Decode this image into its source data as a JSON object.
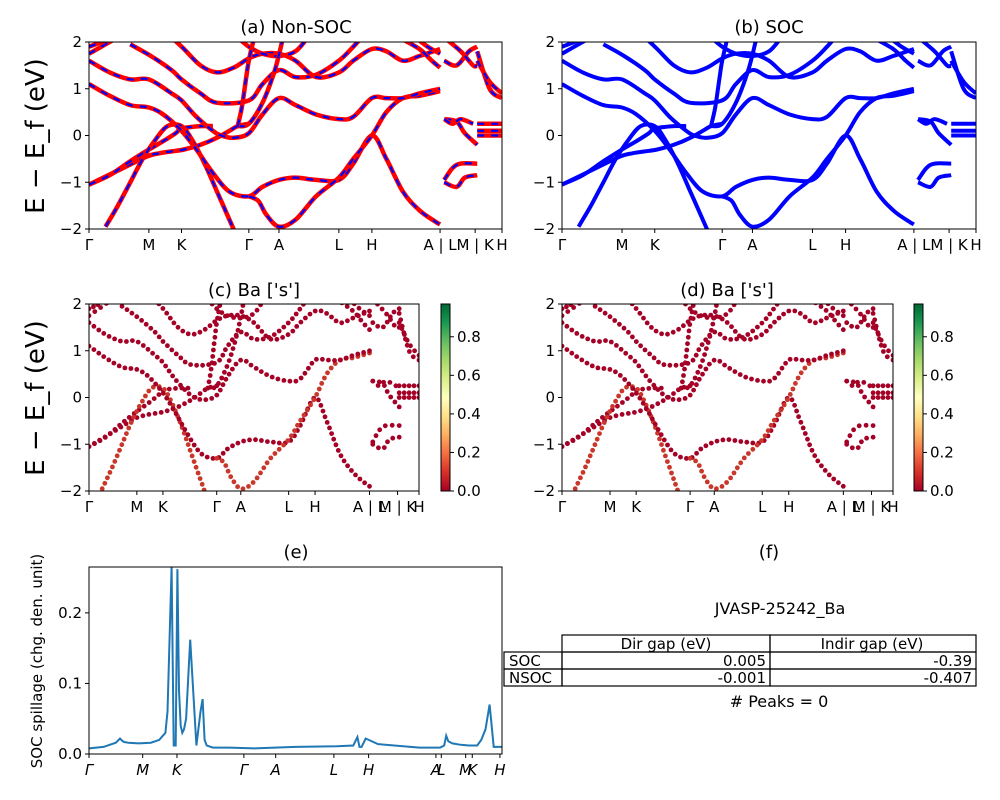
{
  "chart_data": [
    {
      "type": "line",
      "title": "(a) Non-SOC",
      "ylabel": "E − E_f (eV)",
      "ylim": [
        -2,
        2
      ],
      "y_ticks": [
        "−2",
        "−1",
        "0",
        "1",
        "2"
      ],
      "x_ticks": [
        "Γ",
        "M",
        "K",
        "Γ",
        "A",
        "L",
        "H",
        "A | L",
        "M | K",
        "H"
      ],
      "series_colors": [
        "#ff0000",
        "#0000ff"
      ],
      "style": "red bands with blue dashes"
    },
    {
      "type": "line",
      "title": "(b) SOC",
      "ylim": [
        -2,
        2
      ],
      "y_ticks": [
        "−2",
        "−1",
        "0",
        "1",
        "2"
      ],
      "x_ticks": [
        "Γ",
        "M",
        "K",
        "Γ",
        "A",
        "L",
        "H",
        "A | L",
        "M | K",
        "H"
      ],
      "series_colors": [
        "#0000ff"
      ]
    },
    {
      "type": "scatter",
      "title": "(c)  Ba ['s']",
      "ylabel": "E − E_f (eV)",
      "ylim": [
        -2,
        2
      ],
      "y_ticks": [
        "−2",
        "−1",
        "0",
        "1",
        "2"
      ],
      "x_ticks": [
        "Γ",
        "M",
        "K",
        "Γ",
        "A",
        "L",
        "H",
        "A | L",
        "M | K",
        "H"
      ],
      "colorbar": {
        "colormap": "RdYlGn",
        "min": 0.0,
        "max": 0.97,
        "ticks": [
          "0.0",
          "0.2",
          "0.4",
          "0.6",
          "0.8"
        ]
      }
    },
    {
      "type": "scatter",
      "title": "(d) Ba ['s']",
      "ylim": [
        -2,
        2
      ],
      "y_ticks": [
        "−2",
        "−1",
        "0",
        "1",
        "2"
      ],
      "x_ticks": [
        "Γ",
        "M",
        "K",
        "Γ",
        "A",
        "L",
        "H",
        "A | L",
        "M | K",
        "H"
      ],
      "colorbar": {
        "colormap": "RdYlGn",
        "min": 0.0,
        "max": 0.97,
        "ticks": [
          "0.0",
          "0.2",
          "0.4",
          "0.6",
          "0.8"
        ]
      }
    },
    {
      "type": "line",
      "title": "(e)",
      "ylabel": "SOC spillage (chg. den. unit)",
      "ylim": [
        0,
        0.265
      ],
      "y_ticks": [
        "0.0",
        "0.1",
        "0.2"
      ],
      "x_ticks": [
        "Γ",
        "M",
        "K",
        "Γ",
        "A",
        "L",
        "H",
        "A",
        "L",
        "M",
        "K",
        "H"
      ],
      "series": [
        {
          "color": "#1f77b4",
          "x": [
            0,
            0.035,
            0.065,
            0.075,
            0.08,
            0.085,
            0.095,
            0.12,
            0.15,
            0.17,
            0.185,
            0.19,
            0.2,
            0.205,
            0.21,
            0.214,
            0.218,
            0.222,
            0.226,
            0.23,
            0.235,
            0.245,
            0.26,
            0.27,
            0.275,
            0.28,
            0.285,
            0.29,
            0.295,
            0.3,
            0.305,
            0.31,
            0.32,
            0.34,
            0.4,
            0.5,
            0.6,
            0.64,
            0.65,
            0.655,
            0.66,
            0.67,
            0.7,
            0.8,
            0.85,
            0.86,
            0.865,
            0.87,
            0.88,
            0.9,
            0.92,
            0.94,
            0.95,
            0.96,
            0.97,
            0.98,
            1.0
          ],
          "values": [
            0.008,
            0.01,
            0.016,
            0.022,
            0.019,
            0.017,
            0.016,
            0.015,
            0.016,
            0.02,
            0.03,
            0.06,
            0.265,
            0.012,
            0.012,
            0.262,
            0.09,
            0.04,
            0.03,
            0.035,
            0.05,
            0.162,
            0.012,
            0.06,
            0.078,
            0.02,
            0.012,
            0.011,
            0.01,
            0.009,
            0.009,
            0.009,
            0.009,
            0.009,
            0.008,
            0.01,
            0.011,
            0.012,
            0.024,
            0.01,
            0.01,
            0.022,
            0.014,
            0.009,
            0.009,
            0.012,
            0.026,
            0.018,
            0.015,
            0.013,
            0.012,
            0.012,
            0.02,
            0.035,
            0.07,
            0.01,
            0.01
          ]
        }
      ]
    }
  ],
  "table": {
    "caption": "(f)",
    "title": "JVASP-25242_Ba",
    "header": [
      "Dir gap (eV)",
      "Indir gap (eV)"
    ],
    "rows": [
      {
        "label": "SOC",
        "dir": "0.005",
        "indir": "-0.39"
      },
      {
        "label": "NSOC",
        "dir": "-0.001",
        "indir": "-0.407"
      }
    ],
    "footer": "# Peaks = 0"
  }
}
